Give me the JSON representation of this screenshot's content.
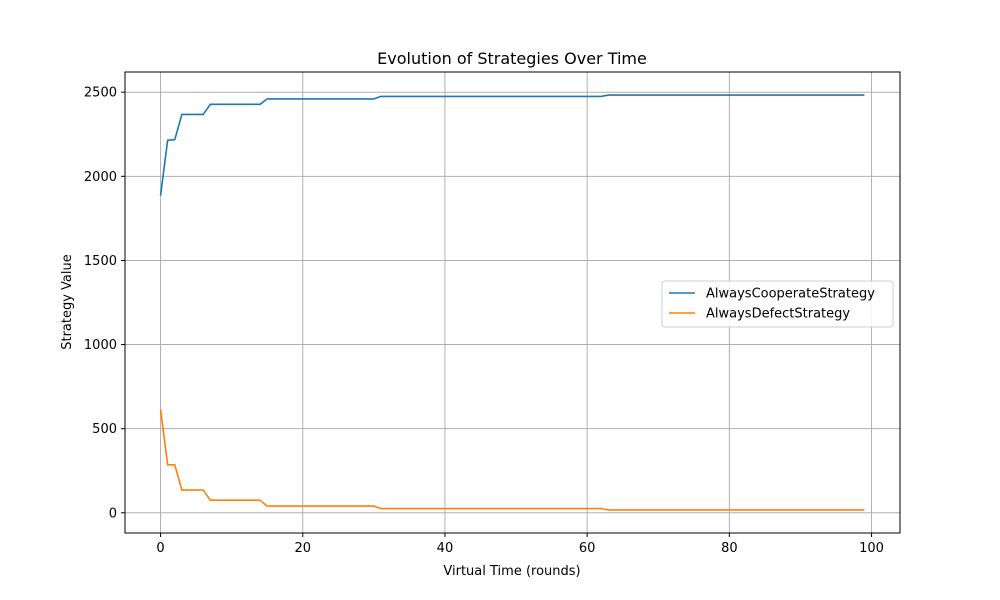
{
  "chart_data": {
    "type": "line",
    "title": "Evolution of Strategies Over Time",
    "xlabel": "Virtual Time (rounds)",
    "ylabel": "Strategy Value",
    "xlim": [
      -5,
      104
    ],
    "ylim": [
      -120,
      2620
    ],
    "xticks": [
      0,
      20,
      40,
      60,
      80,
      100
    ],
    "yticks": [
      0,
      500,
      1000,
      1500,
      2000,
      2500
    ],
    "grid": true,
    "legend_position": "center-right",
    "series": [
      {
        "name": "AlwaysCooperateStrategy",
        "color": "#1f77b4",
        "points": [
          [
            0,
            1885
          ],
          [
            1,
            2215
          ],
          [
            2,
            2218
          ],
          [
            3,
            2368
          ],
          [
            4,
            2368
          ],
          [
            5,
            2368
          ],
          [
            6,
            2368
          ],
          [
            7,
            2428
          ],
          [
            8,
            2428
          ],
          [
            14,
            2428
          ],
          [
            15,
            2460
          ],
          [
            16,
            2460
          ],
          [
            30,
            2460
          ],
          [
            31,
            2475
          ],
          [
            32,
            2475
          ],
          [
            62,
            2475
          ],
          [
            63,
            2483
          ],
          [
            64,
            2483
          ],
          [
            99,
            2483
          ]
        ]
      },
      {
        "name": "AlwaysDefectStrategy",
        "color": "#ff7f0e",
        "points": [
          [
            0,
            615
          ],
          [
            1,
            285
          ],
          [
            2,
            285
          ],
          [
            3,
            135
          ],
          [
            4,
            135
          ],
          [
            5,
            135
          ],
          [
            6,
            135
          ],
          [
            7,
            75
          ],
          [
            8,
            75
          ],
          [
            14,
            75
          ],
          [
            15,
            40
          ],
          [
            16,
            40
          ],
          [
            30,
            40
          ],
          [
            31,
            25
          ],
          [
            32,
            25
          ],
          [
            62,
            25
          ],
          [
            63,
            17
          ],
          [
            64,
            17
          ],
          [
            99,
            17
          ]
        ]
      }
    ]
  }
}
